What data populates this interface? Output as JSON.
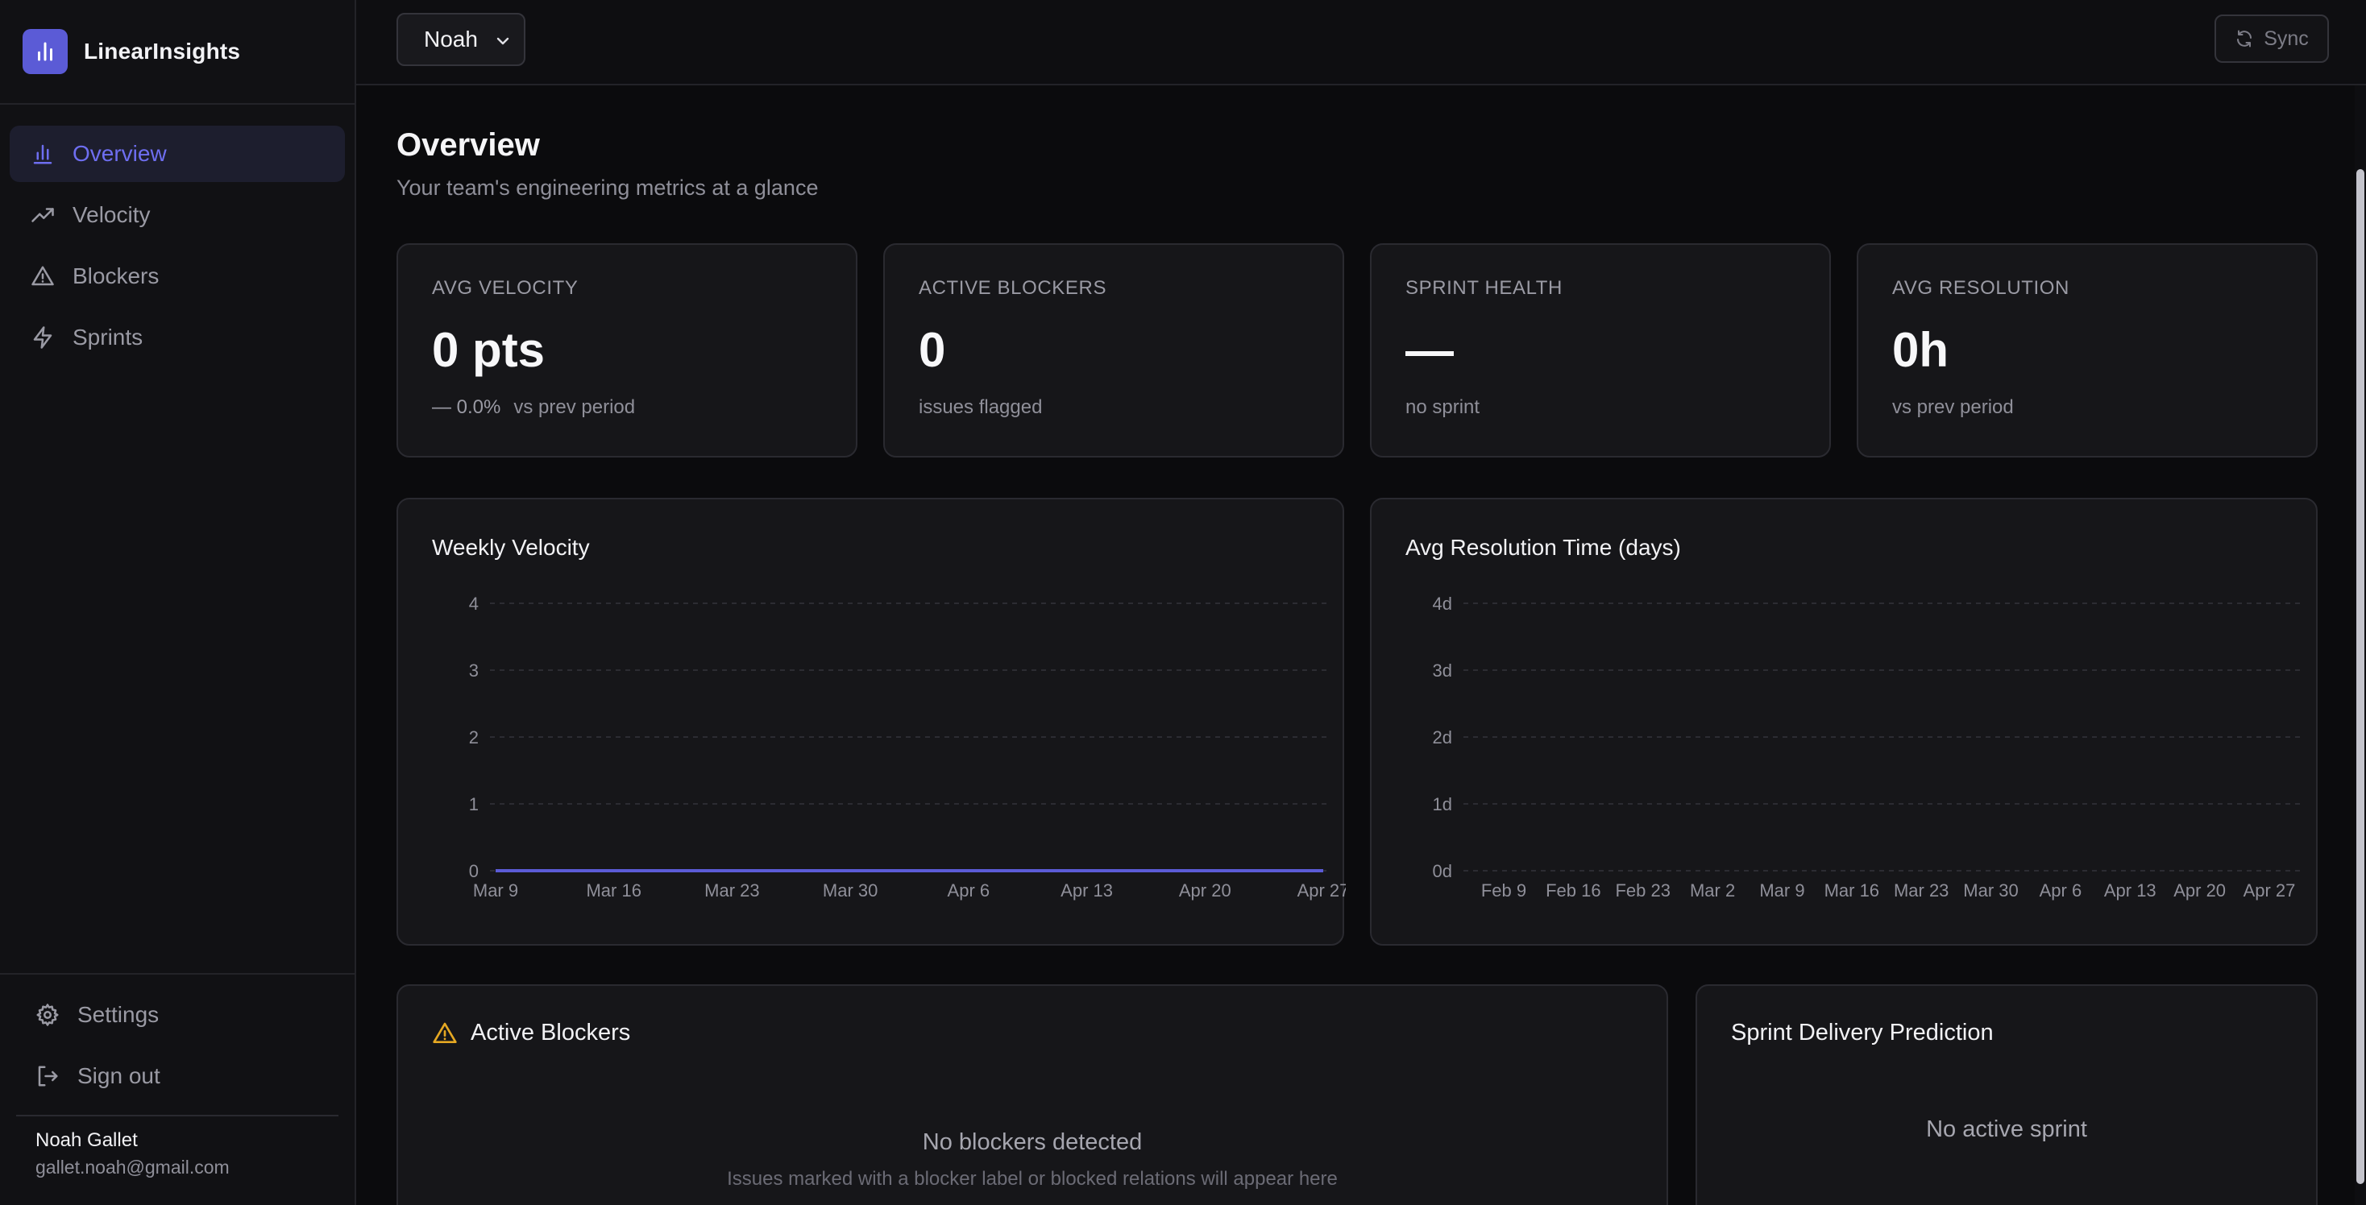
{
  "brand": {
    "name": "LinearInsights",
    "logo_icon": "bar-chart-icon",
    "accent": "#5b5bd6"
  },
  "sidebar": {
    "items": [
      {
        "label": "Overview",
        "icon": "bar-chart-icon",
        "active": true
      },
      {
        "label": "Velocity",
        "icon": "trending-up-icon",
        "active": false
      },
      {
        "label": "Blockers",
        "icon": "warning-triangle-icon",
        "active": false
      },
      {
        "label": "Sprints",
        "icon": "lightning-icon",
        "active": false
      }
    ],
    "bottom": {
      "settings_label": "Settings",
      "signout_label": "Sign out"
    },
    "user": {
      "name": "Noah Gallet",
      "email": "gallet.noah@gmail.com"
    }
  },
  "topbar": {
    "team_select": {
      "value": "Noah"
    },
    "sync_label": "Sync"
  },
  "page": {
    "title": "Overview",
    "subtitle": "Your team's engineering metrics at a glance"
  },
  "kpis": [
    {
      "label": "AVG VELOCITY",
      "value": "0 pts",
      "delta": "— 0.0%",
      "foot": "vs prev period"
    },
    {
      "label": "ACTIVE BLOCKERS",
      "value": "0",
      "foot": "issues flagged"
    },
    {
      "label": "SPRINT HEALTH",
      "value": "—",
      "foot": "no sprint"
    },
    {
      "label": "AVG RESOLUTION",
      "value": "0h",
      "foot": "vs prev period"
    }
  ],
  "chart_data": [
    {
      "type": "line",
      "title": "Weekly Velocity",
      "xlabel": "",
      "ylabel": "",
      "x": [
        "Mar 9",
        "Mar 16",
        "Mar 23",
        "Mar 30",
        "Apr 6",
        "Apr 13",
        "Apr 20",
        "Apr 27"
      ],
      "series": [
        {
          "values": [
            0,
            0,
            0,
            0,
            0,
            0,
            0,
            0
          ],
          "color": "#5b5bd6"
        }
      ],
      "yticks": [
        "0",
        "1",
        "2",
        "3",
        "4"
      ],
      "ylim": [
        0,
        4
      ],
      "grid": true
    },
    {
      "type": "line",
      "title": "Avg Resolution Time (days)",
      "xlabel": "",
      "ylabel": "",
      "x": [
        "Feb 9",
        "Feb 16",
        "Feb 23",
        "Mar 2",
        "Mar 9",
        "Mar 16",
        "Mar 23",
        "Mar 30",
        "Apr 6",
        "Apr 13",
        "Apr 20",
        "Apr 27"
      ],
      "series": [],
      "yticks": [
        "0d",
        "1d",
        "2d",
        "3d",
        "4d"
      ],
      "ylim": [
        0,
        4
      ],
      "grid": true
    }
  ],
  "blockers": {
    "title": "Active Blockers",
    "icon": "warning-triangle-icon",
    "icon_color": "#e5a823",
    "empty_title": "No blockers detected",
    "empty_sub": "Issues marked with a blocker label or blocked relations will appear here"
  },
  "prediction": {
    "title": "Sprint Delivery Prediction",
    "empty_title": "No active sprint"
  }
}
